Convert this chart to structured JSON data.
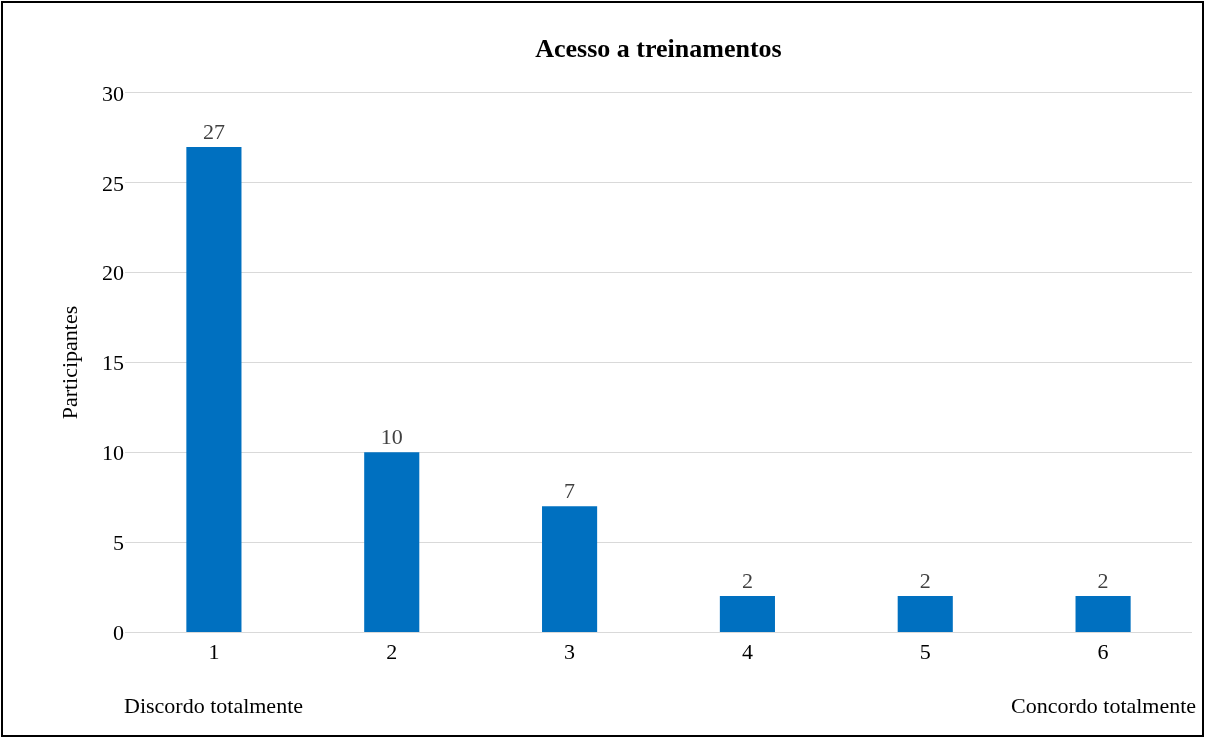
{
  "chart_data": {
    "type": "bar",
    "title": "Acesso a treinamentos",
    "ylabel": "Participantes",
    "categories": [
      "1",
      "2",
      "3",
      "4",
      "5",
      "6"
    ],
    "values": [
      27,
      10,
      7,
      2,
      2,
      2
    ],
    "color": "#0070c0",
    "ylim": [
      0,
      30
    ],
    "yticks": [
      0,
      5,
      10,
      15,
      20,
      25,
      30
    ],
    "grid": "y",
    "data_labels": true,
    "annotations": [
      "Discordo totalmente",
      "Concordo totalmente"
    ]
  }
}
